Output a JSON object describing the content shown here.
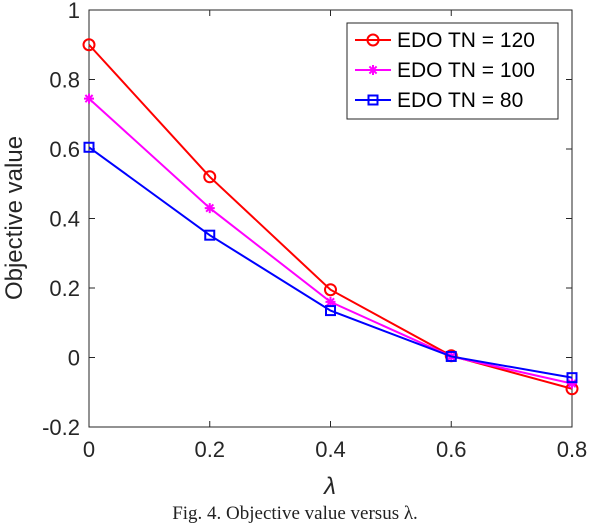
{
  "chart_data": {
    "type": "line",
    "xlabel": "λ",
    "ylabel": "Objective value",
    "caption": "Fig. 4. Objective value versus λ.",
    "x": [
      0,
      0.2,
      0.4,
      0.6,
      0.8
    ],
    "xlim": [
      0,
      0.8
    ],
    "ylim": [
      -0.2,
      1
    ],
    "x_ticks": [
      "0",
      "0.2",
      "0.4",
      "0.6",
      "0.8"
    ],
    "y_ticks": [
      "-0.2",
      "0",
      "0.2",
      "0.4",
      "0.6",
      "0.8",
      "1"
    ],
    "grid": false,
    "legend_position": "top-right",
    "series": [
      {
        "name": "EDO TN = 120",
        "color": "#ff0000",
        "marker": "circle",
        "values": [
          0.9,
          0.52,
          0.195,
          0.005,
          -0.09
        ]
      },
      {
        "name": "EDO TN = 100",
        "color": "#ff00ff",
        "marker": "asterisk",
        "values": [
          0.745,
          0.43,
          0.16,
          0.003,
          -0.075
        ]
      },
      {
        "name": "EDO TN = 80",
        "color": "#0000ff",
        "marker": "square",
        "values": [
          0.605,
          0.352,
          0.135,
          0.003,
          -0.058
        ]
      }
    ]
  }
}
